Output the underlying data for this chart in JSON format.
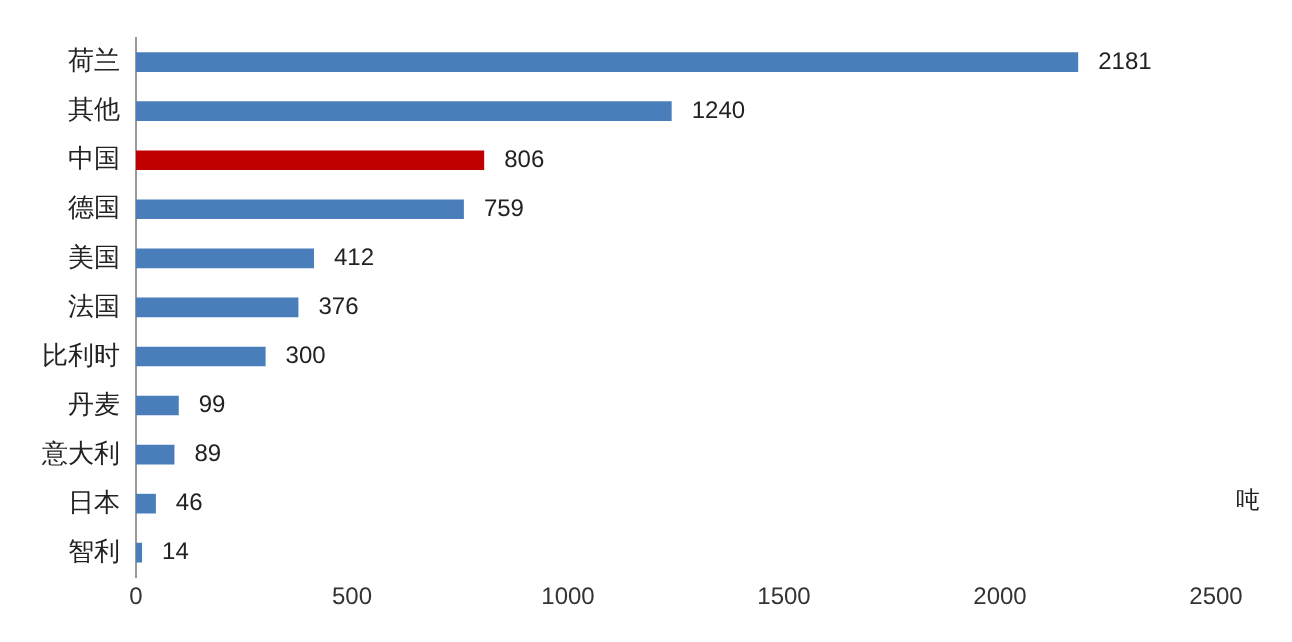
{
  "chart_data": {
    "type": "bar",
    "orientation": "horizontal",
    "categories": [
      "荷兰",
      "其他",
      "中国",
      "德国",
      "美国",
      "法国",
      "比利时",
      "丹麦",
      "意大利",
      "日本",
      "智利"
    ],
    "values": [
      2181,
      1240,
      806,
      759,
      412,
      376,
      300,
      99,
      89,
      46,
      14
    ],
    "colors": [
      "#4a7ebb",
      "#4a7ebb",
      "#c00000",
      "#4a7ebb",
      "#4a7ebb",
      "#4a7ebb",
      "#4a7ebb",
      "#4a7ebb",
      "#4a7ebb",
      "#4a7ebb",
      "#4a7ebb"
    ],
    "xlim": [
      0,
      2500
    ],
    "xticks": [
      0,
      500,
      1000,
      1500,
      2000,
      2500
    ],
    "data_labels": true,
    "grid": false,
    "legend": false,
    "annotations": [
      "吨"
    ]
  }
}
